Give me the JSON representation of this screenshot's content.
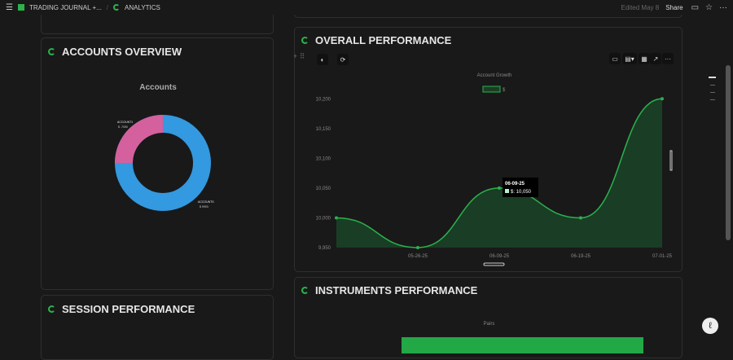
{
  "topbar": {
    "breadcrumb_1": "TRADING JOURNAL +...",
    "separator": "/",
    "breadcrumb_2": "ANALYTICS",
    "edited": "Edited May 8",
    "share": "Share"
  },
  "accounts": {
    "title": "ACCOUNTS OVERVIEW",
    "chart_title": "Accounts"
  },
  "session": {
    "title": "SESSION PERFORMANCE"
  },
  "overall": {
    "title": "OVERALL PERFORMANCE"
  },
  "instruments": {
    "title": "INSTRUMENTS PERFORMANCE",
    "chart_title": "Pairs"
  },
  "colors": {
    "accent": "#2bb24c",
    "pink": "#d4609e",
    "blue": "#3399e0",
    "area": "#1a3d25"
  },
  "chart_data": [
    {
      "type": "pie",
      "title": "Accounts",
      "donut": true,
      "slices": [
        {
          "label": "ACCOUNT1",
          "value_label": "$ -7050",
          "share": 0.25,
          "color": "#d4609e"
        },
        {
          "label": "ACCOUNTS",
          "value_label": "$ 9993",
          "share": 0.75,
          "color": "#3399e0"
        }
      ]
    },
    {
      "type": "area",
      "title": "Account Growth",
      "legend": [
        "$"
      ],
      "legend_position": "top",
      "categories": [
        "",
        "05-26-25",
        "06-09-25",
        "06-19-25",
        "07-01-25"
      ],
      "series": [
        {
          "name": "$",
          "values": [
            10000,
            9950,
            10050,
            10000,
            10200
          ]
        }
      ],
      "yticks": [
        "9,950",
        "10,000",
        "10,050",
        "10,100",
        "10,150",
        "10,200"
      ],
      "ylim": [
        9950,
        10210
      ],
      "tooltip": {
        "title": "06-09-25",
        "text": "$: 10,050"
      }
    }
  ]
}
